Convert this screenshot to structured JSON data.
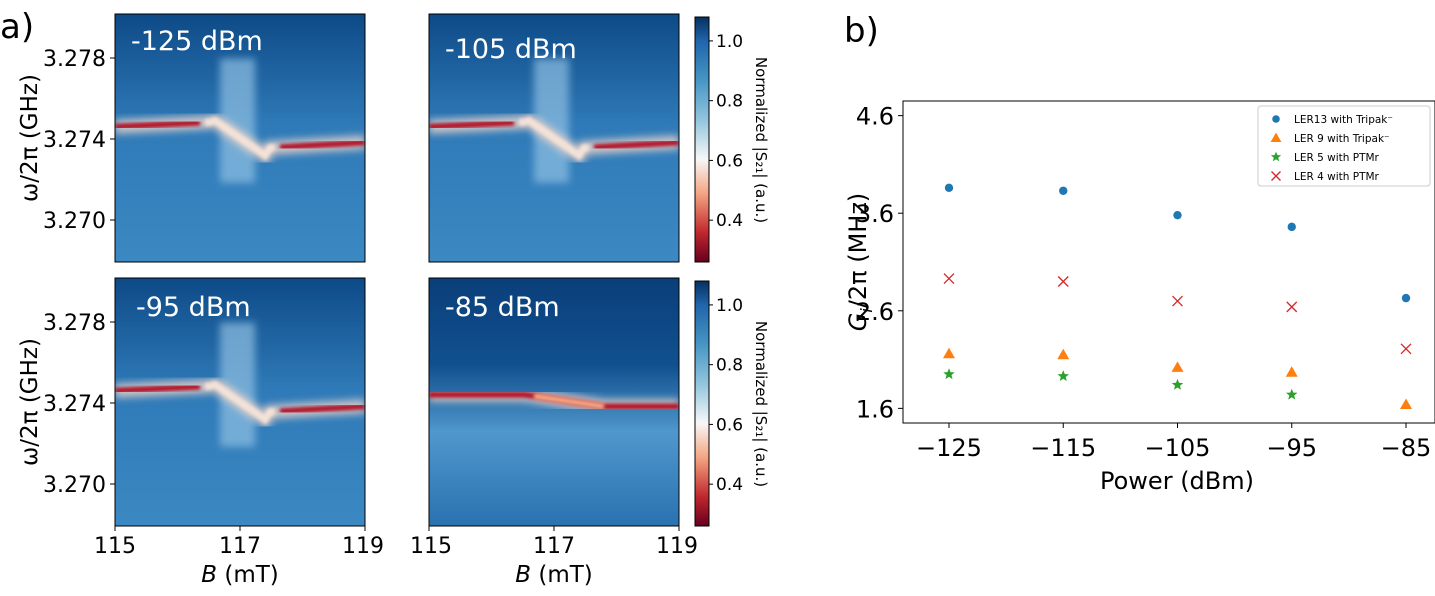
{
  "panel_a_label": "a)",
  "panel_b_label": "b)",
  "maps": {
    "ylabel": "ω/2π (GHz)",
    "xlabel_var": "B",
    "xlabel_unit": " (mT)",
    "colorbar_label": "Normalized |S₂₁| (a.u.)",
    "colorbar_ticks": [
      "1.0",
      "0.8",
      "0.6",
      "0.4"
    ],
    "colorbar_values": [
      1.0,
      0.8,
      0.6,
      0.4
    ],
    "colorbar_range": [
      0.26,
      1.08
    ],
    "yticks": [
      "3.278",
      "3.274",
      "3.270"
    ],
    "xticks": [
      "115",
      "117",
      "119"
    ],
    "panels": [
      {
        "power": "-125 dBm",
        "level": -125
      },
      {
        "power": "-105 dBm",
        "level": -105
      },
      {
        "power": "-95 dBm",
        "level": -95
      },
      {
        "power": "-85 dBm",
        "level": -85
      }
    ]
  },
  "chart_data": {
    "type": "scatter",
    "title": "",
    "xlabel": "Power (dBm)",
    "ylabel": "G_i/2π (MHz)",
    "ylabel_var": "G",
    "ylabel_sub": "i",
    "ylabel_rest": "/2π (MHz)",
    "xlim": [
      -127,
      -84
    ],
    "ylim": [
      1.45,
      4.75
    ],
    "xticks": [
      -125,
      -115,
      -105,
      -95,
      -85
    ],
    "xtick_labels": [
      "−125",
      "−115",
      "−105",
      "−95",
      "−85"
    ],
    "yticks": [
      1.6,
      2.6,
      3.6,
      4.6
    ],
    "ytick_labels": [
      "1.6",
      "2.6",
      "3.6",
      "4.6"
    ],
    "legend_position": "top-right",
    "x": [
      -125,
      -115,
      -105,
      -95,
      -85
    ],
    "series": [
      {
        "name": "LER13 with Tripak⁻",
        "marker": "circle",
        "color": "#1f77b4",
        "values": [
          3.86,
          3.83,
          3.58,
          3.46,
          2.73
        ]
      },
      {
        "name": "LER 9 with Tripak⁻",
        "marker": "triangle",
        "color": "#ff7f0e",
        "values": [
          2.16,
          2.15,
          2.02,
          1.97,
          1.64
        ]
      },
      {
        "name": "LER 5 with PTMr",
        "marker": "star",
        "color": "#2ca02c",
        "values": [
          1.95,
          1.93,
          1.84,
          1.74,
          null
        ]
      },
      {
        "name": "LER 4 with PTMr",
        "marker": "x",
        "color": "#d62728",
        "values": [
          2.93,
          2.9,
          2.7,
          2.64,
          2.21
        ]
      }
    ]
  }
}
